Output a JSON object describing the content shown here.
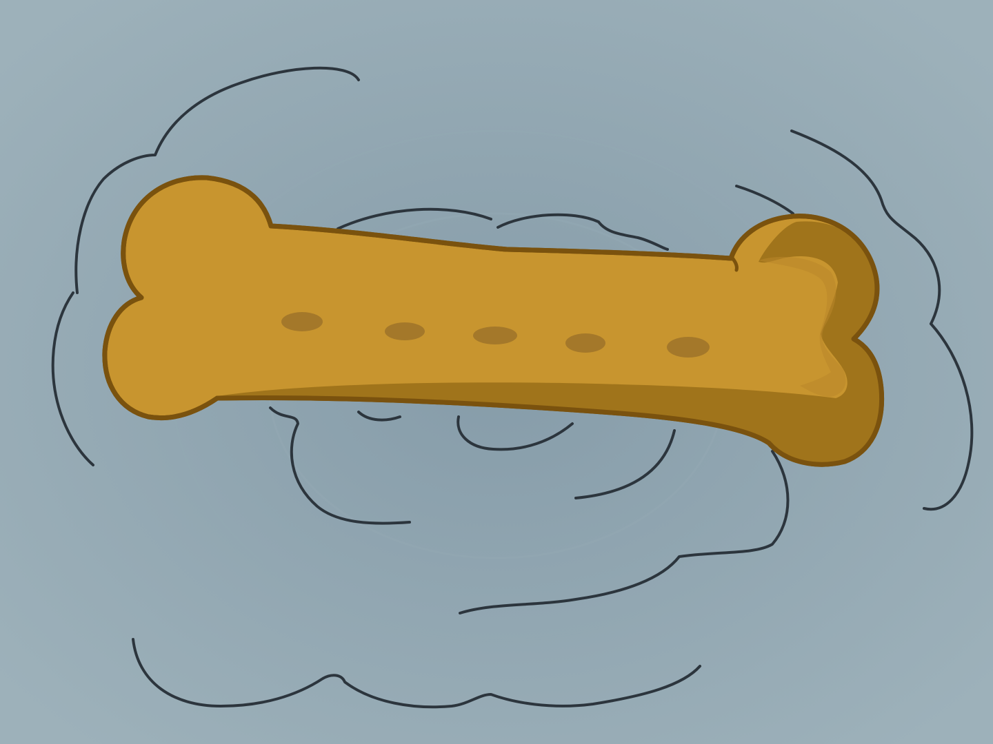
{
  "illustration": {
    "subject": "dog-biscuit-bone",
    "spot_count": 5,
    "colors": {
      "background_center": "#8A9FAC",
      "background_edge": "#9DB1BA",
      "biscuit_fill": "#C8952F",
      "biscuit_shadow": "#A0741B",
      "biscuit_highlight": "#D3A444",
      "biscuit_outline": "#7A520E",
      "spot_fill": "#A4782A",
      "motion_line": "#2C353D"
    }
  }
}
